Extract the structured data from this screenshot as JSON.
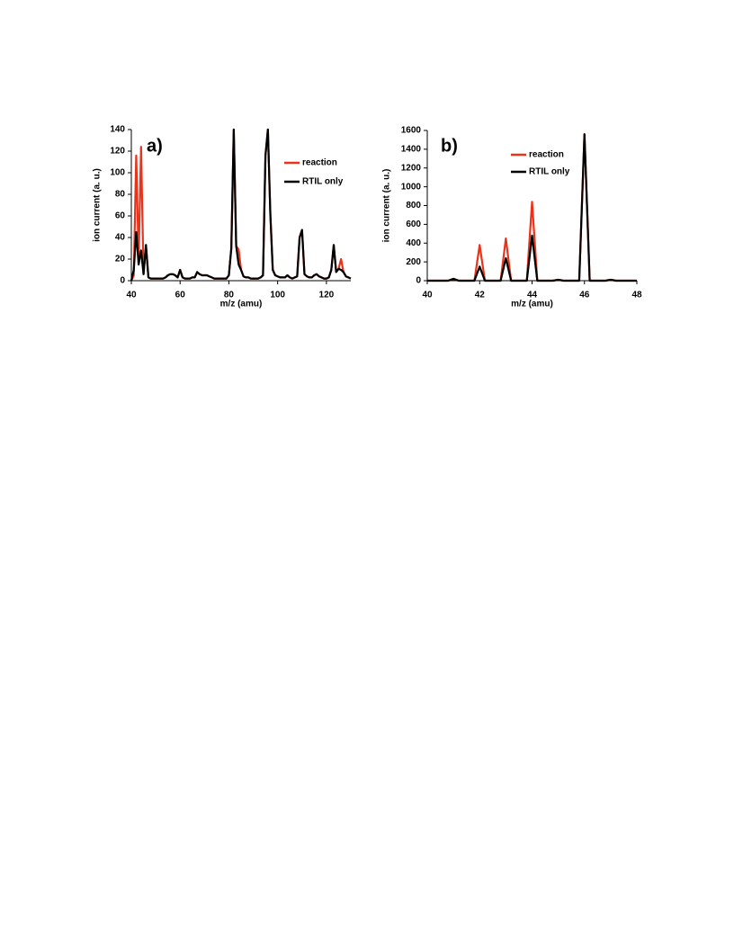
{
  "chart_data": [
    {
      "type": "line",
      "annotation": "a)",
      "xlabel": "m/z (amu)",
      "ylabel": "ion current (a. u.)",
      "xlim": [
        40,
        130
      ],
      "xticks": [
        40,
        60,
        80,
        100,
        120
      ],
      "ylim": [
        0,
        140
      ],
      "yticks": [
        0,
        20,
        40,
        60,
        80,
        100,
        120,
        140
      ],
      "x": [
        40,
        41,
        42,
        43,
        44,
        45,
        46,
        47,
        48,
        49,
        50,
        51,
        52,
        53,
        54,
        55,
        56,
        57,
        58,
        59,
        60,
        61,
        62,
        63,
        64,
        65,
        66,
        67,
        68,
        69,
        70,
        71,
        72,
        73,
        74,
        75,
        76,
        77,
        78,
        79,
        80,
        81,
        82,
        83,
        84,
        85,
        86,
        87,
        88,
        89,
        90,
        91,
        92,
        93,
        94,
        95,
        96,
        97,
        98,
        99,
        100,
        101,
        102,
        103,
        104,
        105,
        106,
        107,
        108,
        109,
        110,
        111,
        112,
        113,
        114,
        115,
        116,
        117,
        118,
        119,
        120,
        121,
        122,
        123,
        124,
        125,
        126,
        127,
        128,
        129,
        130
      ],
      "series": [
        {
          "name": "reaction",
          "color": "#e8341c",
          "values": [
            0,
            5,
            116,
            20,
            124,
            6,
            33,
            3,
            2,
            2,
            2,
            2,
            2,
            2,
            3,
            5,
            6,
            6,
            5,
            3,
            10,
            3,
            2,
            2,
            2,
            3,
            3,
            8,
            6,
            5,
            5,
            5,
            4,
            3,
            2,
            2,
            2,
            2,
            2,
            2,
            5,
            30,
            140,
            32,
            29,
            10,
            4,
            3,
            3,
            2,
            2,
            2,
            2,
            3,
            5,
            116,
            140,
            62,
            10,
            5,
            4,
            3,
            3,
            3,
            5,
            3,
            2,
            3,
            4,
            40,
            47,
            6,
            4,
            3,
            3,
            5,
            6,
            4,
            3,
            2,
            2,
            3,
            10,
            33,
            8,
            11,
            20,
            8,
            4,
            3,
            2
          ]
        },
        {
          "name": "RTIL only",
          "color": "#000000",
          "values": [
            0,
            10,
            45,
            15,
            28,
            6,
            33,
            3,
            2,
            2,
            2,
            2,
            2,
            2,
            3,
            5,
            6,
            6,
            5,
            3,
            10,
            3,
            2,
            2,
            2,
            3,
            3,
            8,
            6,
            5,
            5,
            5,
            4,
            3,
            2,
            2,
            2,
            2,
            2,
            2,
            5,
            30,
            140,
            32,
            15,
            10,
            4,
            3,
            3,
            2,
            2,
            2,
            2,
            3,
            5,
            116,
            140,
            62,
            10,
            5,
            4,
            3,
            3,
            3,
            5,
            3,
            2,
            3,
            4,
            40,
            47,
            6,
            4,
            3,
            3,
            5,
            6,
            4,
            3,
            2,
            2,
            3,
            10,
            33,
            8,
            11,
            10,
            8,
            4,
            3,
            2
          ]
        }
      ]
    },
    {
      "type": "line",
      "annotation": "b)",
      "xlabel": "m/z (amu)",
      "ylabel": "ion current (a. u.)",
      "xlim": [
        40,
        48
      ],
      "xticks": [
        40,
        42,
        44,
        46,
        48
      ],
      "ylim": [
        0,
        1600
      ],
      "yticks": [
        0,
        200,
        400,
        600,
        800,
        1000,
        1200,
        1400,
        1600
      ],
      "x": [
        40,
        40.8,
        41,
        41.2,
        41.8,
        42,
        42.2,
        42.8,
        43,
        43.2,
        43.8,
        44,
        44.2,
        44.8,
        45,
        45.2,
        45.8,
        46,
        46.2,
        46.8,
        47,
        47.2,
        48
      ],
      "series": [
        {
          "name": "reaction",
          "color": "#e8341c",
          "values": [
            0,
            0,
            20,
            0,
            0,
            380,
            0,
            0,
            450,
            0,
            0,
            840,
            0,
            0,
            10,
            0,
            0,
            1560,
            0,
            0,
            10,
            0,
            0
          ]
        },
        {
          "name": "RTIL only",
          "color": "#000000",
          "values": [
            0,
            0,
            20,
            0,
            0,
            150,
            0,
            0,
            240,
            0,
            0,
            480,
            0,
            0,
            10,
            0,
            0,
            1560,
            0,
            0,
            10,
            0,
            0
          ]
        }
      ]
    }
  ]
}
